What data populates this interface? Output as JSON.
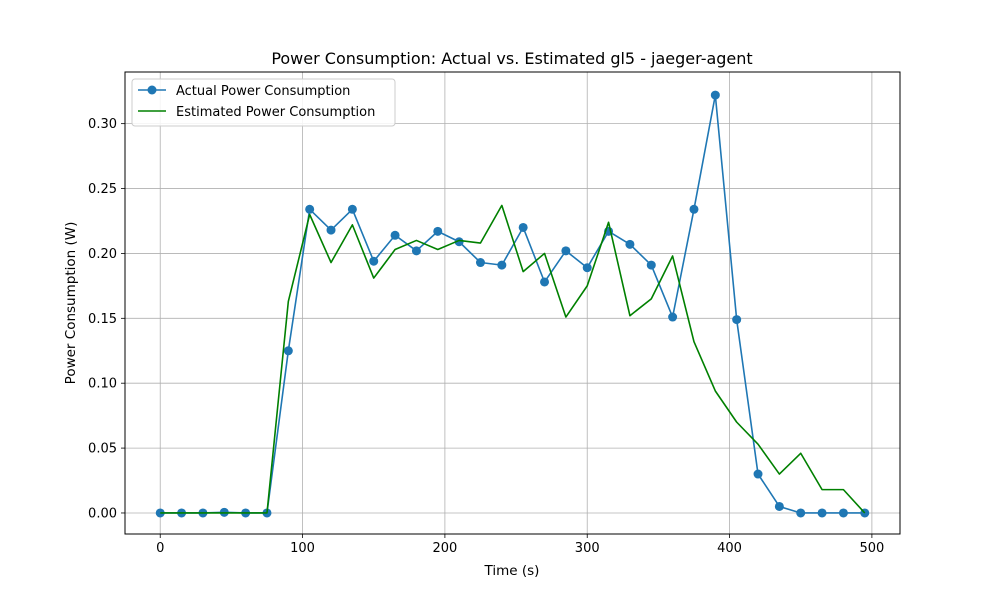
{
  "chart_data": {
    "type": "line",
    "title": "Power Consumption: Actual vs. Estimated gl5 - jaeger-agent",
    "xlabel": "Time (s)",
    "ylabel": "Power Consumption (W)",
    "xlim": [
      -24.75,
      519.75
    ],
    "ylim": [
      -0.0162,
      0.3398
    ],
    "xticks": [
      0,
      100,
      200,
      300,
      400,
      500
    ],
    "xtick_labels": [
      "0",
      "100",
      "200",
      "300",
      "400",
      "500"
    ],
    "yticks": [
      0.0,
      0.05,
      0.1,
      0.15,
      0.2,
      0.25,
      0.3
    ],
    "ytick_labels": [
      "0.00",
      "0.05",
      "0.10",
      "0.15",
      "0.20",
      "0.25",
      "0.30"
    ],
    "grid": true,
    "legend_position": "top-left",
    "x": [
      0,
      15,
      30,
      45,
      60,
      75,
      90,
      105,
      120,
      135,
      150,
      165,
      180,
      195,
      210,
      225,
      240,
      255,
      270,
      285,
      300,
      315,
      330,
      345,
      360,
      375,
      390,
      405,
      420,
      435,
      450,
      465,
      480,
      495
    ],
    "series": [
      {
        "name": "Actual Power Consumption",
        "color": "#1f77b4",
        "marker": "circle",
        "values": [
          0.0,
          0.0,
          0.0,
          0.0005,
          0.0,
          0.0,
          0.125,
          0.234,
          0.218,
          0.234,
          0.194,
          0.214,
          0.202,
          0.217,
          0.209,
          0.193,
          0.191,
          0.22,
          0.178,
          0.202,
          0.189,
          0.217,
          0.207,
          0.191,
          0.151,
          0.234,
          0.322,
          0.149,
          0.03,
          0.005,
          0.0,
          0.0,
          0.0,
          0.0
        ]
      },
      {
        "name": "Estimated Power Consumption",
        "color": "#008000",
        "marker": "none",
        "values": [
          0.0,
          0.0,
          0.0,
          0.0,
          0.0,
          0.0,
          0.163,
          0.23,
          0.193,
          0.222,
          0.181,
          0.203,
          0.21,
          0.203,
          0.21,
          0.208,
          0.237,
          0.186,
          0.2,
          0.151,
          0.175,
          0.224,
          0.152,
          0.165,
          0.198,
          0.132,
          0.094,
          0.07,
          0.053,
          0.03,
          0.046,
          0.018,
          0.018,
          0.0
        ]
      }
    ]
  }
}
